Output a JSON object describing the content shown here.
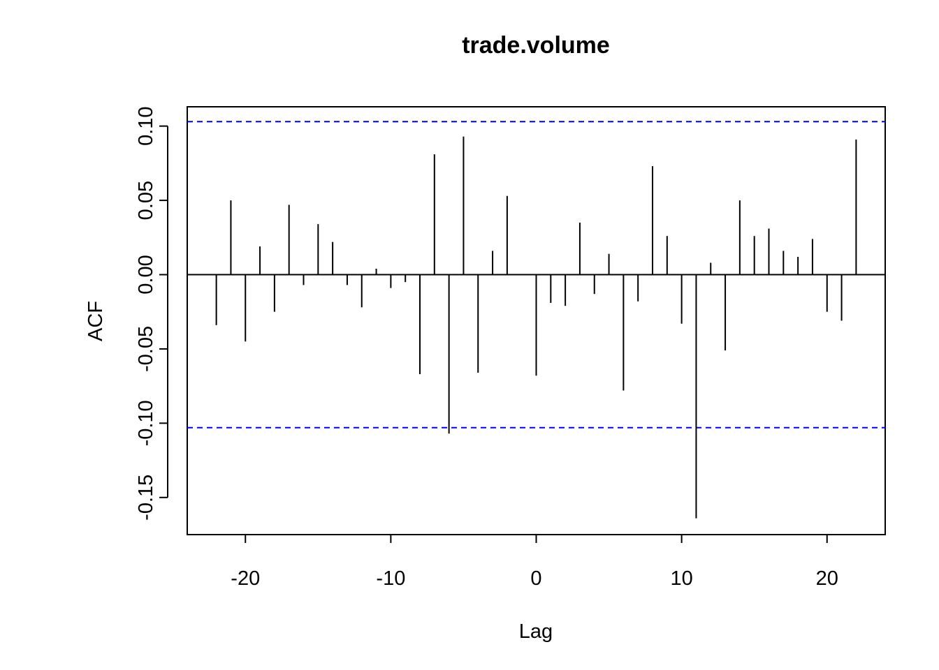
{
  "chart_data": {
    "type": "bar",
    "title": "trade.volume",
    "xlabel": "Lag",
    "ylabel": "ACF",
    "xlim": [
      -24,
      24
    ],
    "ylim": [
      -0.175,
      0.113
    ],
    "x_ticks": [
      -20,
      -10,
      0,
      10,
      20
    ],
    "x_tick_labels": [
      "-20",
      "-10",
      "0",
      "10",
      "20"
    ],
    "y_ticks": [
      -0.15,
      -0.1,
      -0.05,
      0.0,
      0.05,
      0.1
    ],
    "y_tick_labels": [
      "-0.15",
      "-0.10",
      "-0.05",
      "0.00",
      "0.05",
      "0.10"
    ],
    "confidence_bounds": [
      0.103,
      -0.103
    ],
    "colors": {
      "bars": "#000000",
      "confidence": "#0000ff",
      "zero_line": "#000000"
    },
    "x": [
      -22,
      -21,
      -20,
      -19,
      -18,
      -17,
      -16,
      -15,
      -14,
      -13,
      -12,
      -11,
      -10,
      -9,
      -8,
      -7,
      -6,
      -5,
      -4,
      -3,
      -2,
      -1,
      0,
      1,
      2,
      3,
      4,
      5,
      6,
      7,
      8,
      9,
      10,
      11,
      12,
      13,
      14,
      15,
      16,
      17,
      18,
      19,
      20,
      21,
      22
    ],
    "values": [
      -0.034,
      0.05,
      -0.045,
      0.019,
      -0.025,
      0.047,
      -0.007,
      0.034,
      0.022,
      -0.007,
      -0.022,
      0.004,
      -0.009,
      -0.005,
      -0.067,
      0.081,
      -0.107,
      0.093,
      -0.066,
      0.016,
      0.053,
      0.0,
      -0.068,
      -0.019,
      -0.021,
      0.035,
      -0.013,
      0.014,
      -0.078,
      -0.018,
      0.073,
      0.026,
      -0.033,
      -0.164,
      0.008,
      -0.051,
      0.05,
      0.026,
      0.031,
      0.016,
      0.012,
      0.024,
      -0.025,
      -0.031,
      0.091
    ]
  }
}
